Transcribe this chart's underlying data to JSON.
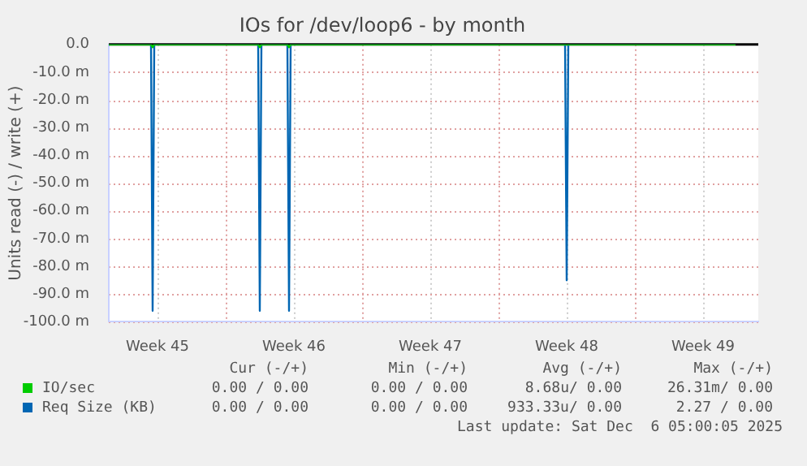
{
  "chart_data": {
    "type": "line",
    "title": "IOs for /dev/loop6 - by month",
    "ylabel": "Units read (-) / write (+)",
    "xlim": [
      "2025-11-04T00:00",
      "2025-12-07T08:00"
    ],
    "xticks": [
      {
        "value": "2025-11-06T12:00",
        "label": "Week 45"
      },
      {
        "value": "2025-11-10T00:00",
        "label": null
      },
      {
        "value": "2025-11-13T12:00",
        "label": "Week 46"
      },
      {
        "value": "2025-11-17T00:00",
        "label": null
      },
      {
        "value": "2025-11-20T12:00",
        "label": "Week 47"
      },
      {
        "value": "2025-11-24T00:00",
        "label": null
      },
      {
        "value": "2025-11-27T12:00",
        "label": "Week 48"
      },
      {
        "value": "2025-12-01T00:00",
        "label": null
      },
      {
        "value": "2025-12-04T12:00",
        "label": "Week 49"
      }
    ],
    "ylim": [
      -100,
      0
    ],
    "yticks": [
      {
        "value": -100,
        "label": "-100.0 m"
      },
      {
        "value": -90,
        "label": "-90.0 m"
      },
      {
        "value": -80,
        "label": "-80.0 m"
      },
      {
        "value": -70,
        "label": "-70.0 m"
      },
      {
        "value": -60,
        "label": "-60.0 m"
      },
      {
        "value": -50,
        "label": "-50.0 m"
      },
      {
        "value": -40,
        "label": "-40.0 m"
      },
      {
        "value": -30,
        "label": "-30.0 m"
      },
      {
        "value": -20,
        "label": "-20.0 m"
      },
      {
        "value": -10,
        "label": "-10.0 m"
      },
      {
        "value": 0,
        "label": "0.0"
      }
    ],
    "series": [
      {
        "name": "IO/sec",
        "color": "#00cc00",
        "x": [
          "2025-11-04T00:00",
          "2025-11-06T04:00",
          "2025-11-06T06:00",
          "2025-11-06T08:00",
          "2025-11-11T16:00",
          "2025-11-11T18:00",
          "2025-11-11T20:00",
          "2025-11-13T04:00",
          "2025-11-13T06:00",
          "2025-11-13T08:00",
          "2025-12-06T04:00"
        ],
        "values": [
          0,
          0,
          -1,
          0,
          0,
          -1,
          0,
          0,
          -1,
          0,
          0
        ]
      },
      {
        "name": "Req Size (KB)",
        "color": "#0066b3",
        "x": [
          "2025-11-04T00:00",
          "2025-11-06T04:00",
          "2025-11-06T06:00",
          "2025-11-06T08:00",
          "2025-11-11T16:00",
          "2025-11-11T18:00",
          "2025-11-11T20:00",
          "2025-11-13T04:00",
          "2025-11-13T06:00",
          "2025-11-13T08:00",
          "2025-11-27T10:00",
          "2025-11-27T12:00",
          "2025-11-27T14:00",
          "2025-12-06T04:00"
        ],
        "values": [
          0,
          0,
          -96,
          0,
          0,
          -96,
          0,
          0,
          -96,
          0,
          0,
          -85,
          0,
          0
        ]
      }
    ],
    "ref_lines": [
      {
        "axis": "y",
        "value": 0,
        "color": "#000000"
      }
    ],
    "grid": true,
    "legend": "bottom",
    "marker": "none",
    "line_style": "solid",
    "annotations": [
      "Cur (-/+)",
      "Min (-/+)",
      "Avg (-/+)",
      "Max (-/+)",
      "0.00 / 0.00",
      "0.00 / 0.00",
      "8.68u/ 0.00",
      "26.31m/ 0.00",
      "0.00 / 0.00",
      "0.00 / 0.00",
      "933.33u/ 0.00",
      "2.27 / 0.00",
      "Last update: Sat Dec  6 05:00:05 2025"
    ]
  }
}
